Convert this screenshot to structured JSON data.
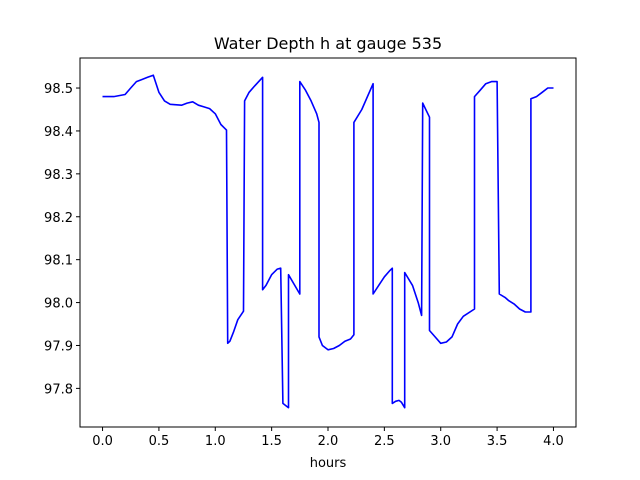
{
  "chart_data": {
    "type": "line",
    "title": "Water Depth h at gauge 535",
    "xlabel": "hours",
    "ylabel": "",
    "xlim": [
      -0.2,
      4.2
    ],
    "ylim": [
      97.71,
      98.57
    ],
    "xticks": [
      0.0,
      0.5,
      1.0,
      1.5,
      2.0,
      2.5,
      3.0,
      3.5,
      4.0
    ],
    "xtick_labels": [
      "0.0",
      "0.5",
      "1.0",
      "1.5",
      "2.0",
      "2.5",
      "3.0",
      "3.5",
      "4.0"
    ],
    "yticks": [
      97.8,
      97.9,
      98.0,
      98.1,
      98.2,
      98.3,
      98.4,
      98.5
    ],
    "ytick_labels": [
      "97.8",
      "97.9",
      "98.0",
      "98.1",
      "98.2",
      "98.3",
      "98.4",
      "98.5"
    ],
    "grid": false,
    "series": [
      {
        "color": "#0000ff",
        "x": [
          0.0,
          0.1,
          0.2,
          0.25,
          0.3,
          0.35,
          0.4,
          0.45,
          0.5,
          0.55,
          0.6,
          0.7,
          0.75,
          0.8,
          0.85,
          0.9,
          0.95,
          1.0,
          1.05,
          1.1,
          1.11,
          1.13,
          1.16,
          1.2,
          1.25,
          1.26,
          1.3,
          1.35,
          1.42,
          1.42,
          1.45,
          1.5,
          1.55,
          1.58,
          1.6,
          1.65,
          1.65,
          1.75,
          1.75,
          1.8,
          1.85,
          1.9,
          1.92,
          1.92,
          1.95,
          2.0,
          2.05,
          2.1,
          2.15,
          2.2,
          2.23,
          2.23,
          2.3,
          2.4,
          2.4,
          2.45,
          2.5,
          2.55,
          2.57,
          2.57,
          2.6,
          2.63,
          2.65,
          2.68,
          2.68,
          2.75,
          2.8,
          2.83,
          2.84,
          2.9,
          2.9,
          2.95,
          3.0,
          3.05,
          3.1,
          3.15,
          3.2,
          3.3,
          3.3,
          3.35,
          3.4,
          3.45,
          3.5,
          3.5,
          3.52,
          3.57,
          3.6,
          3.65,
          3.7,
          3.75,
          3.8,
          3.8,
          3.85,
          3.9,
          3.95,
          4.0
        ],
        "y": [
          98.48,
          98.48,
          98.485,
          98.5,
          98.515,
          98.52,
          98.525,
          98.53,
          98.49,
          98.47,
          98.462,
          98.46,
          98.465,
          98.468,
          98.46,
          98.456,
          98.452,
          98.44,
          98.415,
          98.402,
          97.905,
          97.91,
          97.93,
          97.96,
          97.98,
          98.47,
          98.49,
          98.505,
          98.525,
          98.03,
          98.04,
          98.065,
          98.078,
          98.08,
          97.765,
          97.755,
          98.065,
          98.02,
          98.515,
          98.495,
          98.47,
          98.44,
          98.42,
          97.92,
          97.9,
          97.89,
          97.893,
          97.9,
          97.91,
          97.915,
          97.925,
          98.42,
          98.45,
          98.51,
          98.02,
          98.04,
          98.06,
          98.075,
          98.08,
          97.765,
          97.77,
          97.772,
          97.768,
          97.755,
          98.07,
          98.04,
          98.0,
          97.97,
          98.465,
          98.432,
          97.935,
          97.92,
          97.905,
          97.908,
          97.92,
          97.95,
          97.968,
          97.985,
          98.48,
          98.495,
          98.51,
          98.515,
          98.515,
          98.515,
          98.02,
          98.012,
          98.005,
          97.997,
          97.985,
          97.978,
          97.978,
          98.475,
          98.48,
          98.49,
          98.5,
          98.5
        ]
      }
    ]
  }
}
